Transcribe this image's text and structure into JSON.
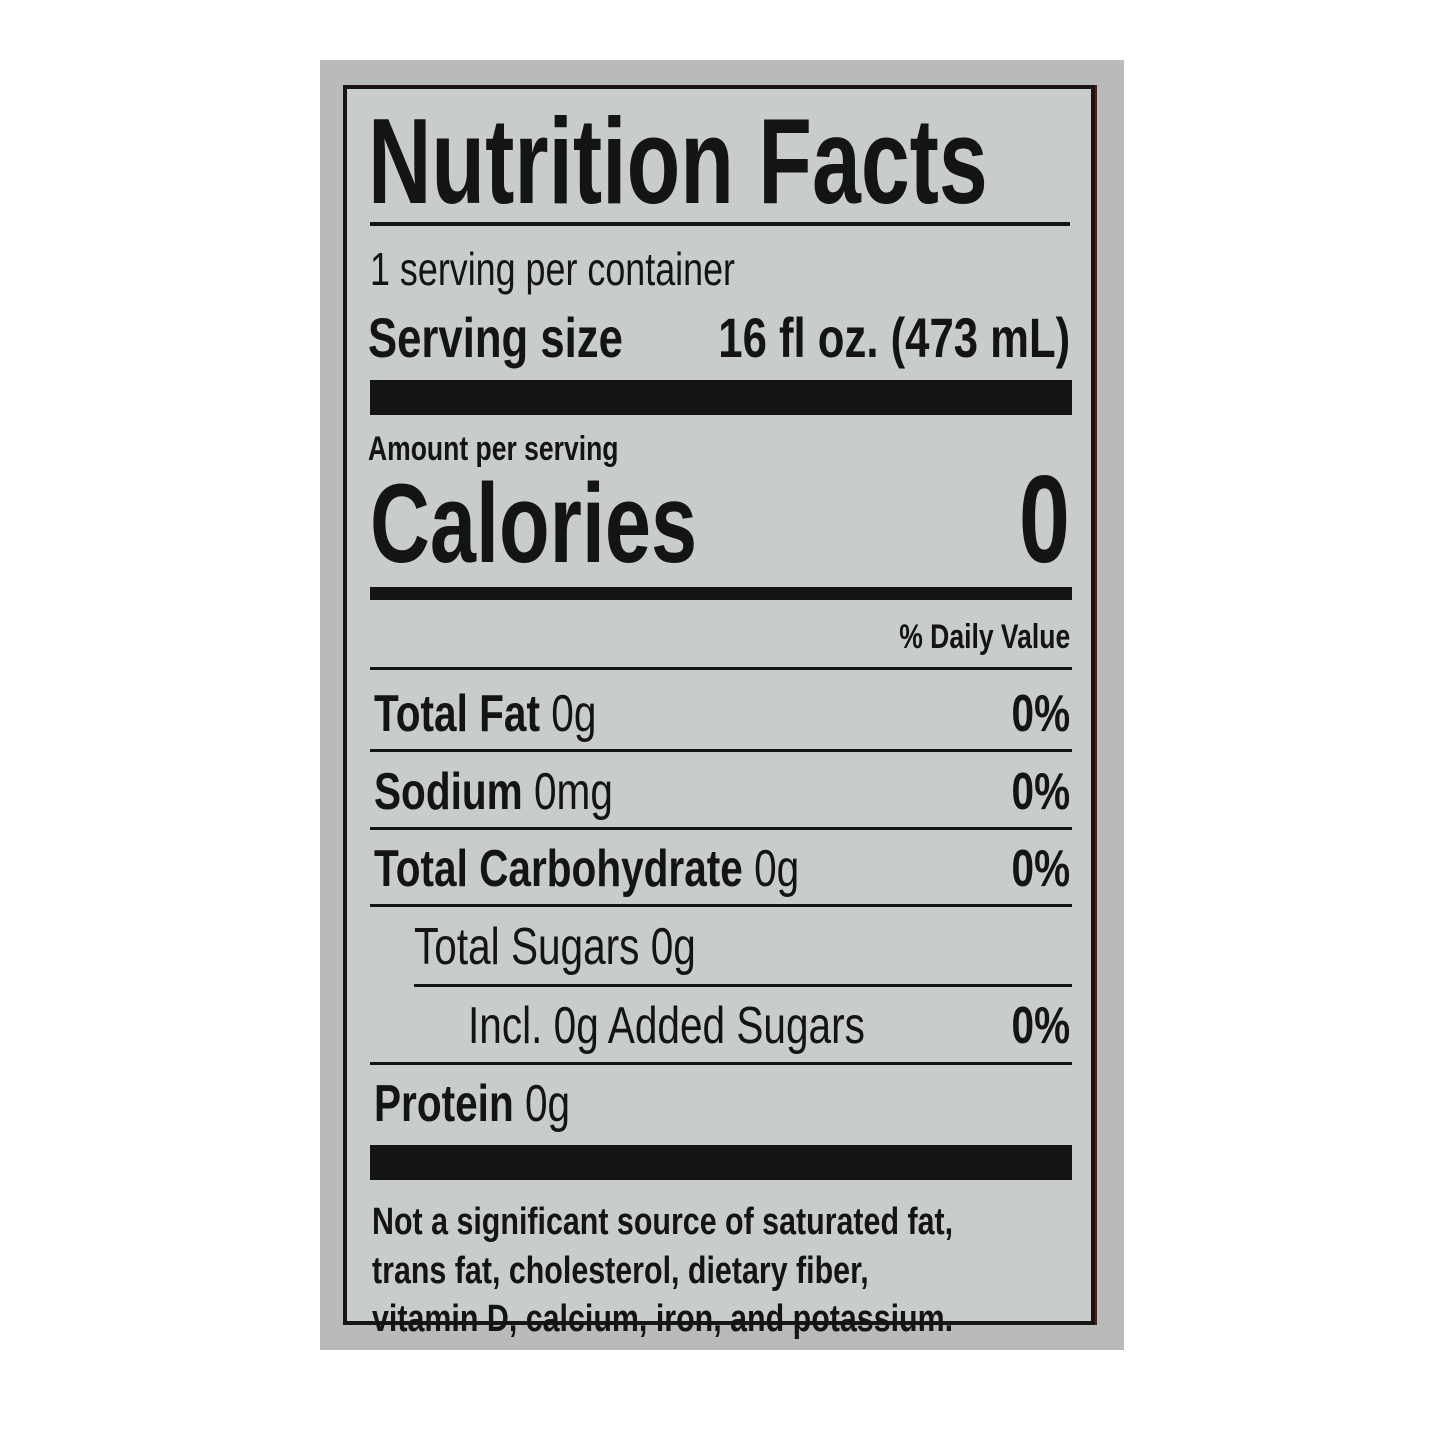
{
  "title": "Nutrition Facts",
  "servings_per_container": "1 serving per container",
  "serving_size": {
    "label": "Serving size",
    "value": "16 fl oz. (473 mL)"
  },
  "amount_per_serving": "Amount per serving",
  "calories": {
    "label": "Calories",
    "value": "0"
  },
  "daily_value_header": "% Daily Value",
  "nutrients": [
    {
      "name": "Total Fat",
      "amount": "0g",
      "dv": "0%"
    },
    {
      "name": "Sodium",
      "amount": "0mg",
      "dv": "0%"
    },
    {
      "name": "Total Carbohydrate",
      "amount": "0g",
      "dv": "0%"
    },
    {
      "name": "Total Sugars",
      "amount": "0g",
      "dv": ""
    },
    {
      "name": "Incl. 0g Added Sugars",
      "amount": "",
      "dv": "0%"
    },
    {
      "name": "Protein",
      "amount": "0g",
      "dv": ""
    }
  ],
  "footnote": [
    "Not a significant source of saturated fat,",
    "trans fat, cholesterol, dietary fiber,",
    "vitamin D, calcium, iron, and potassium."
  ]
}
